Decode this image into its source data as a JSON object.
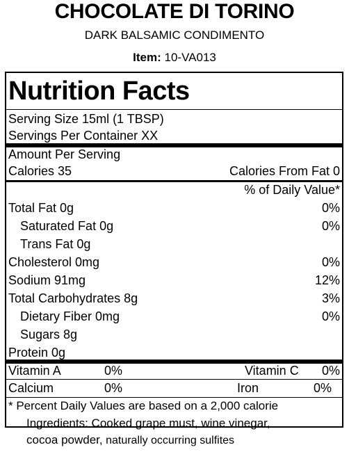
{
  "header": {
    "product_name": "CHOCOLATE DI TORINO",
    "subtitle": "DARK BALSAMIC CONDIMENTO",
    "item_label": "Item:",
    "item_number": "10-VA013"
  },
  "panel": {
    "heading": "Nutrition Facts",
    "serving_size": "Serving Size  15ml (1 TBSP)",
    "servings_per_container": "Servings Per Container  XX",
    "amount_per_serving": "Amount Per Serving",
    "calories": "Calories 35",
    "calories_from_fat": "Calories From Fat 0",
    "daily_value_header": "% of Daily Value*",
    "nutrients": [
      {
        "label": "Total Fat  0g",
        "dv": "0%"
      },
      {
        "label": "Saturated Fat  0g",
        "dv": "0%"
      },
      {
        "label": "Trans Fat  0g",
        "dv": ""
      },
      {
        "label": "Cholesterol  0mg",
        "dv": "0%"
      },
      {
        "label": "Sodium  91mg",
        "dv": "12%"
      },
      {
        "label": "Total Carbohydrates  8g",
        "dv": "3%"
      },
      {
        "label": "Dietary Fiber  0mg",
        "dv": "0%"
      },
      {
        "label": "Sugars  8g",
        "dv": ""
      },
      {
        "label": "Protein  0g",
        "dv": ""
      }
    ],
    "vitamins": {
      "vitamin_a_label": "Vitamin A",
      "vitamin_a_value": "0%",
      "vitamin_c_label": "Vitamin C",
      "vitamin_c_value": "0%",
      "calcium_label": "Calcium",
      "calcium_value": "0%",
      "iron_label": "Iron",
      "iron_value": "0%"
    },
    "footnote": "* Percent Daily Values are based on a 2,000 calorie"
  },
  "ingredients": {
    "text": "Ingredients: Cooked grape must, wine vinegar,",
    "text_line2": "cocoa powder,",
    "sulfites": " naturally occurring sulfites"
  }
}
